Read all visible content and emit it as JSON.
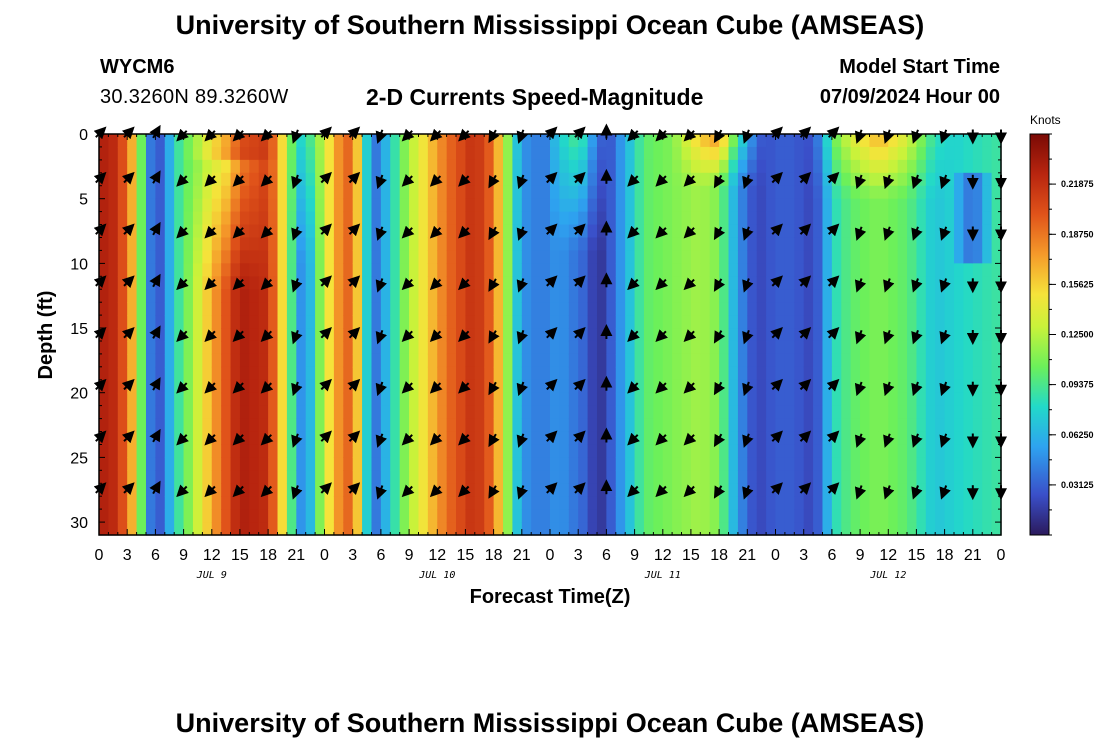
{
  "header": {
    "title": "University of Southern Mississippi Ocean Cube (AMSEAS)",
    "station": "WYCM6",
    "coords": "30.3260N  89.3260W",
    "subtitle": "2-D Currents Speed-Magnitude",
    "model_start_label": "Model Start Time",
    "model_start_value": "07/09/2024 Hour 00"
  },
  "footer": {
    "title": "University of Southern Mississippi Ocean Cube (AMSEAS)"
  },
  "chart_data": {
    "type": "heatmap",
    "title": "2-D Currents Speed-Magnitude",
    "xlabel": "Forecast Time(Z)",
    "ylabel": "Depth (ft)",
    "x_hours": [
      0,
      3,
      6,
      9,
      12,
      15,
      18,
      21,
      24,
      27,
      30,
      33,
      36,
      39,
      42,
      45,
      48,
      51,
      54,
      57,
      60,
      63,
      66,
      69,
      72,
      75,
      78,
      81,
      84,
      87,
      90,
      93,
      96
    ],
    "x_tick_labels": [
      "0",
      "3",
      "6",
      "9",
      "12",
      "15",
      "18",
      "21",
      "0",
      "3",
      "6",
      "9",
      "12",
      "15",
      "18",
      "21",
      "0",
      "3",
      "6",
      "9",
      "12",
      "15",
      "18",
      "21",
      "0",
      "3",
      "6",
      "9",
      "12",
      "15",
      "18",
      "21",
      "0"
    ],
    "day_labels": [
      {
        "label": "JUL 9",
        "hour": 12
      },
      {
        "label": "JUL 10",
        "hour": 36
      },
      {
        "label": "JUL 11",
        "hour": 60
      },
      {
        "label": "JUL 12",
        "hour": 84
      }
    ],
    "y_ticks": [
      0,
      5,
      10,
      15,
      20,
      25,
      30
    ],
    "y_range": [
      0,
      31
    ],
    "colorbar": {
      "unit": "Knots",
      "range": [
        0.0,
        0.25
      ],
      "tick_labels": [
        "0.21875",
        "0.18750",
        "0.15625",
        "0.12500",
        "0.09375",
        "0.06250",
        "0.03125"
      ],
      "tick_values": [
        0.21875,
        0.1875,
        0.15625,
        0.125,
        0.09375,
        0.0625,
        0.03125
      ]
    },
    "column_speed_profile_knots": [
      {
        "hour": 0,
        "speed": 0.23
      },
      {
        "hour": 2,
        "speed": 0.22
      },
      {
        "hour": 4,
        "speed": 0.15
      },
      {
        "hour": 5,
        "speed": 0.06
      },
      {
        "hour": 6,
        "speed": 0.02
      },
      {
        "hour": 7,
        "speed": 0.04
      },
      {
        "hour": 8,
        "speed": 0.08
      },
      {
        "hour": 10,
        "speed": 0.12
      },
      {
        "hour": 12,
        "speed": 0.17
      },
      {
        "hour": 15,
        "speed": 0.23
      },
      {
        "hour": 18,
        "speed": 0.22
      },
      {
        "hour": 20,
        "speed": 0.13
      },
      {
        "hour": 21,
        "speed": 0.06
      },
      {
        "hour": 22,
        "speed": 0.04
      },
      {
        "hour": 23,
        "speed": 0.09
      },
      {
        "hour": 25,
        "speed": 0.17
      },
      {
        "hour": 27,
        "speed": 0.2
      },
      {
        "hour": 28,
        "speed": 0.12
      },
      {
        "hour": 29,
        "speed": 0.03
      },
      {
        "hour": 30,
        "speed": 0.05
      },
      {
        "hour": 32,
        "speed": 0.1
      },
      {
        "hour": 34,
        "speed": 0.14
      },
      {
        "hour": 37,
        "speed": 0.19
      },
      {
        "hour": 40,
        "speed": 0.22
      },
      {
        "hour": 42,
        "speed": 0.19
      },
      {
        "hour": 44,
        "speed": 0.09
      },
      {
        "hour": 45,
        "speed": 0.05
      },
      {
        "hour": 47,
        "speed": 0.04
      },
      {
        "hour": 49,
        "speed": 0.05
      },
      {
        "hour": 52,
        "speed": 0.03
      },
      {
        "hour": 53,
        "speed": 0.01
      },
      {
        "hour": 54,
        "speed": 0.02
      },
      {
        "hour": 56,
        "speed": 0.06
      },
      {
        "hour": 58,
        "speed": 0.1
      },
      {
        "hour": 61,
        "speed": 0.11
      },
      {
        "hour": 64,
        "speed": 0.12
      },
      {
        "hour": 66,
        "speed": 0.11
      },
      {
        "hour": 68,
        "speed": 0.05
      },
      {
        "hour": 70,
        "speed": 0.02
      },
      {
        "hour": 72,
        "speed": 0.03
      },
      {
        "hour": 74,
        "speed": 0.03
      },
      {
        "hour": 76,
        "speed": 0.02
      },
      {
        "hour": 77,
        "speed": 0.04
      },
      {
        "hour": 78,
        "speed": 0.08
      },
      {
        "hour": 80,
        "speed": 0.1
      },
      {
        "hour": 83,
        "speed": 0.11
      },
      {
        "hour": 86,
        "speed": 0.1
      },
      {
        "hour": 89,
        "speed": 0.07
      },
      {
        "hour": 92,
        "speed": 0.08
      },
      {
        "hour": 96,
        "speed": 0.09
      }
    ],
    "arrow_hours": [
      0,
      3,
      6,
      9,
      12,
      15,
      18,
      21,
      24,
      27,
      30,
      33,
      36,
      39,
      42,
      45,
      48,
      51,
      54,
      57,
      60,
      63,
      66,
      69,
      72,
      75,
      78,
      81,
      84,
      87,
      90,
      93,
      96
    ],
    "arrow_depths_ft": [
      0,
      3.5,
      7.5,
      11.5,
      15.5,
      19.5,
      23.5,
      27.5
    ],
    "arrow_directions_deg": [
      45,
      45,
      30,
      225,
      225,
      225,
      225,
      200,
      45,
      45,
      200,
      225,
      225,
      225,
      210,
      200,
      45,
      45,
      0,
      225,
      225,
      225,
      210,
      200,
      45,
      45,
      45,
      200,
      200,
      200,
      200,
      180,
      180
    ]
  }
}
